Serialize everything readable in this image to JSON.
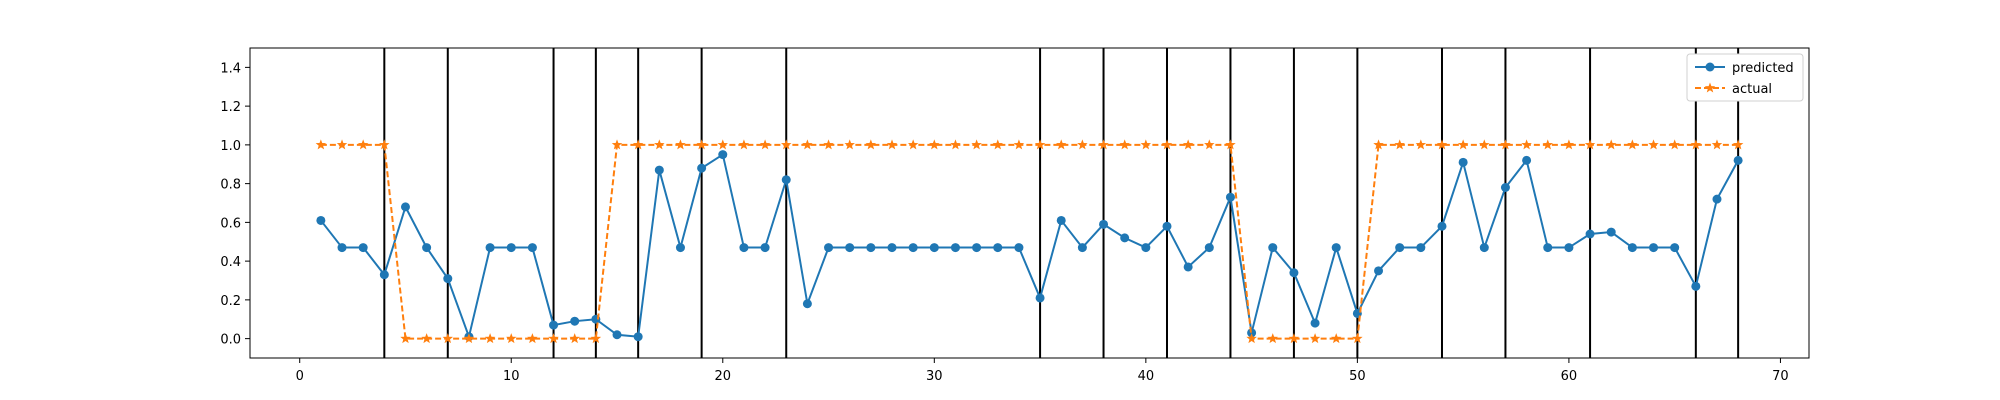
{
  "chart_data": {
    "type": "line",
    "title": "",
    "xlabel": "",
    "ylabel": "",
    "xlim": [
      -2.35,
      71.35
    ],
    "ylim": [
      -0.1,
      1.5
    ],
    "xticks": [
      0,
      10,
      20,
      30,
      40,
      50,
      60,
      70
    ],
    "yticks": [
      0.0,
      0.2,
      0.4,
      0.6,
      0.8,
      1.0,
      1.2,
      1.4
    ],
    "xtick_labels": [
      "0",
      "10",
      "20",
      "30",
      "40",
      "50",
      "60",
      "70"
    ],
    "ytick_labels": [
      "0.0",
      "0.2",
      "0.4",
      "0.6",
      "0.8",
      "1.0",
      "1.2",
      "1.4"
    ],
    "grid": false,
    "legend": "top-right",
    "vlines": [
      4,
      7,
      12,
      14,
      16,
      19,
      23,
      35,
      38,
      41,
      44,
      47,
      50,
      54,
      57,
      61,
      66,
      68
    ],
    "series": [
      {
        "name": "predicted",
        "color": "#1f77b4",
        "marker": "circle",
        "linestyle": "solid",
        "x": [
          1,
          2,
          3,
          4,
          5,
          6,
          7,
          8,
          9,
          10,
          11,
          12,
          13,
          14,
          15,
          16,
          17,
          18,
          19,
          20,
          21,
          22,
          23,
          24,
          25,
          26,
          27,
          28,
          29,
          30,
          31,
          32,
          33,
          34,
          35,
          36,
          37,
          38,
          39,
          40,
          41,
          42,
          43,
          44,
          45,
          46,
          47,
          48,
          49,
          50,
          51,
          52,
          53,
          54,
          55,
          56,
          57,
          58,
          59,
          60,
          61,
          62,
          63,
          64,
          65,
          66,
          67,
          68
        ],
        "values": [
          0.61,
          0.47,
          0.47,
          0.33,
          0.68,
          0.47,
          0.31,
          0.01,
          0.47,
          0.47,
          0.47,
          0.07,
          0.09,
          0.1,
          0.02,
          0.01,
          0.87,
          0.47,
          0.88,
          0.95,
          0.47,
          0.47,
          0.82,
          0.18,
          0.47,
          0.47,
          0.47,
          0.47,
          0.47,
          0.47,
          0.47,
          0.47,
          0.47,
          0.47,
          0.21,
          0.61,
          0.47,
          0.59,
          0.52,
          0.47,
          0.58,
          0.37,
          0.47,
          0.73,
          0.03,
          0.47,
          0.34,
          0.08,
          0.47,
          0.13,
          0.35,
          0.47,
          0.47,
          0.58,
          0.91,
          0.47,
          0.78,
          0.92,
          0.47,
          0.47,
          0.54,
          0.55,
          0.47,
          0.47,
          0.47,
          0.27,
          0.72,
          0.92
        ]
      },
      {
        "name": "actual",
        "color": "#ff7f0e",
        "marker": "star",
        "linestyle": "dashed",
        "x": [
          1,
          2,
          3,
          4,
          5,
          6,
          7,
          8,
          9,
          10,
          11,
          12,
          13,
          14,
          15,
          16,
          17,
          18,
          19,
          20,
          21,
          22,
          23,
          24,
          25,
          26,
          27,
          28,
          29,
          30,
          31,
          32,
          33,
          34,
          35,
          36,
          37,
          38,
          39,
          40,
          41,
          42,
          43,
          44,
          45,
          46,
          47,
          48,
          49,
          50,
          51,
          52,
          53,
          54,
          55,
          56,
          57,
          58,
          59,
          60,
          61,
          62,
          63,
          64,
          65,
          66,
          67,
          68
        ],
        "values": [
          1,
          1,
          1,
          1,
          0,
          0,
          0,
          0,
          0,
          0,
          0,
          0,
          0,
          0,
          1,
          1,
          1,
          1,
          1,
          1,
          1,
          1,
          1,
          1,
          1,
          1,
          1,
          1,
          1,
          1,
          1,
          1,
          1,
          1,
          1,
          1,
          1,
          1,
          1,
          1,
          1,
          1,
          1,
          1,
          0,
          0,
          0,
          0,
          0,
          0,
          1,
          1,
          1,
          1,
          1,
          1,
          1,
          1,
          1,
          1,
          1,
          1,
          1,
          1,
          1,
          1,
          1,
          1
        ]
      }
    ]
  }
}
